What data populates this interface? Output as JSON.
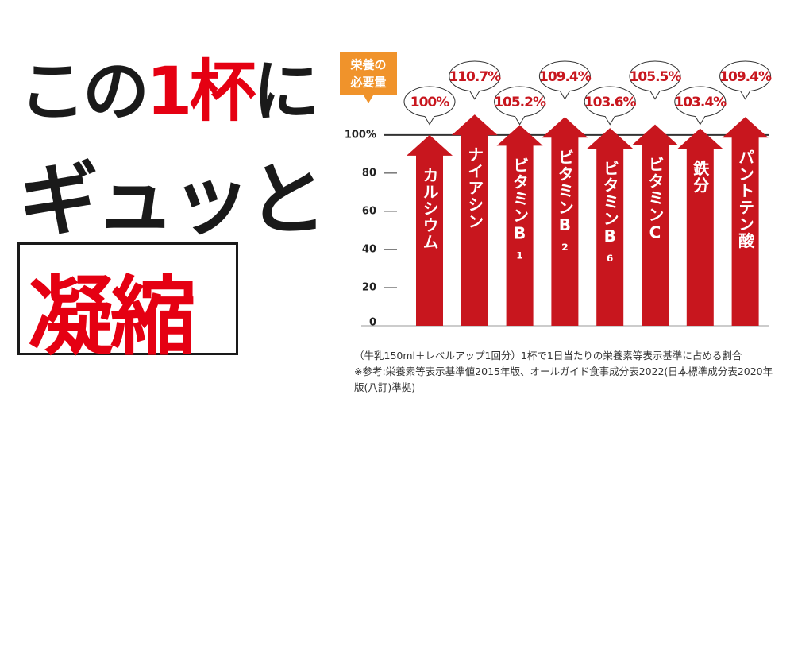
{
  "headline": {
    "line1": [
      "この",
      "1杯",
      "に"
    ],
    "line2": "ギュッと",
    "line3": "凝縮"
  },
  "chart_data": {
    "type": "arrow-bar",
    "badge": [
      "栄養の",
      "必要量"
    ],
    "categories": [
      "カルシウム",
      "ナイアシン",
      "ビタミンB₁",
      "ビタミンB₂",
      "ビタミンB₆",
      "ビタミンC",
      "鉄分",
      "パントテン酸"
    ],
    "values": [
      100,
      110.7,
      105.2,
      109.4,
      103.6,
      105.5,
      103.4,
      109.4
    ],
    "value_labels": [
      "100%",
      "110.7%",
      "105.2%",
      "109.4%",
      "103.6%",
      "105.5%",
      "103.4%",
      "109.4%"
    ],
    "color": "#c8161e",
    "ylim": [
      0,
      112
    ],
    "yticks": [
      0,
      20,
      40,
      60,
      80,
      {
        "value": 100,
        "label": "100%"
      }
    ],
    "notes": [
      "（牛乳150ml＋レベルアップ1回分）1杯で1日当たりの栄養素等表示基準に占める割合",
      "※参考:栄養素等表示基準値2015年版、オールガイド食事成分表2022(日本標準成分表2020年版(八訂)準拠)"
    ]
  }
}
